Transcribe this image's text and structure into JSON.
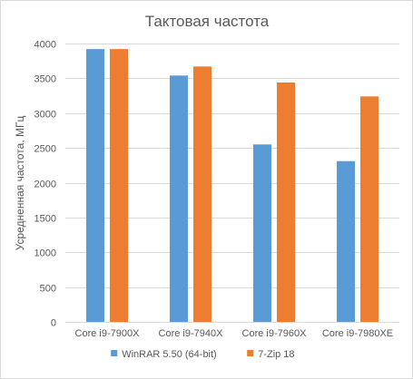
{
  "chart_data": {
    "type": "bar",
    "title": "Тактовая частота",
    "xlabel": "",
    "ylabel": "Усредненная частота, МГц",
    "ylim": [
      0,
      4000
    ],
    "yticks": [
      0,
      500,
      1000,
      1500,
      2000,
      2500,
      3000,
      3500,
      4000
    ],
    "categories": [
      "Core i9-7900X",
      "Core i9-7940X",
      "Core i9-7960X",
      "Core i9-7980XE"
    ],
    "series": [
      {
        "name": "WinRAR 5.50 (64-bit)",
        "color": "#5b9bd5",
        "values": [
          3920,
          3540,
          2550,
          2310
        ]
      },
      {
        "name": "7-Zip 18",
        "color": "#ed7d31",
        "values": [
          3920,
          3670,
          3440,
          3240
        ]
      }
    ],
    "grid": true,
    "legend": "bottom"
  }
}
